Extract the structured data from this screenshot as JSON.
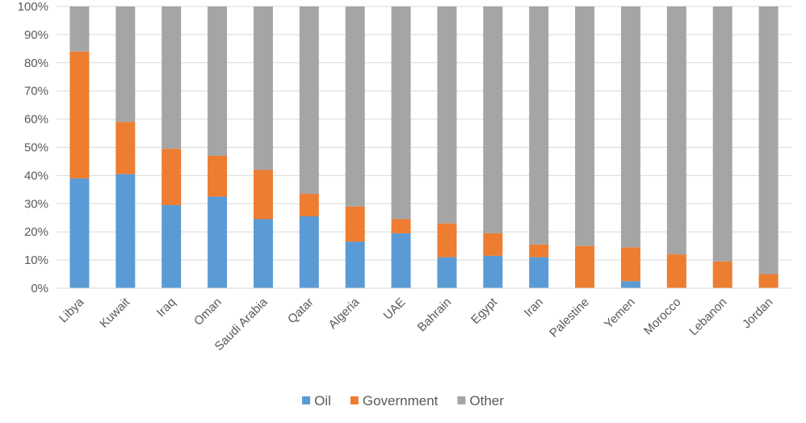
{
  "chart_data": {
    "type": "bar",
    "stacked": true,
    "percent": true,
    "title": "",
    "xlabel": "",
    "ylabel": "",
    "ylim": [
      0,
      100
    ],
    "y_ticks": [
      "0%",
      "10%",
      "20%",
      "30%",
      "40%",
      "50%",
      "60%",
      "70%",
      "80%",
      "90%",
      "100%"
    ],
    "grid": true,
    "legend_position": "bottom",
    "categories": [
      "Libya",
      "Kuwait",
      "Iraq",
      "Oman",
      "Saudi Arabia",
      "Qatar",
      "Algeria",
      "UAE",
      "Bahrain",
      "Egypt",
      "Iran",
      "Palestine",
      "Yemen",
      "Morocco",
      "Lebanon",
      "Jordan"
    ],
    "series": [
      {
        "name": "Oil",
        "color": "#5b9bd5",
        "values": [
          39,
          40.5,
          29.5,
          32.5,
          24.5,
          25.5,
          16.5,
          19.5,
          11,
          11.5,
          11,
          0,
          2.5,
          0,
          0,
          0
        ]
      },
      {
        "name": "Government",
        "color": "#ed7d31",
        "values": [
          45,
          18.5,
          20,
          14.5,
          17.5,
          8,
          12.5,
          5,
          12,
          8,
          4.5,
          15,
          12,
          12,
          9.5,
          5
        ]
      },
      {
        "name": "Other",
        "color": "#a5a5a5",
        "values": [
          16,
          41,
          50.5,
          53,
          58,
          66.5,
          71,
          75.5,
          77,
          80.5,
          84.5,
          85,
          85.5,
          88,
          90.5,
          95
        ]
      }
    ]
  }
}
